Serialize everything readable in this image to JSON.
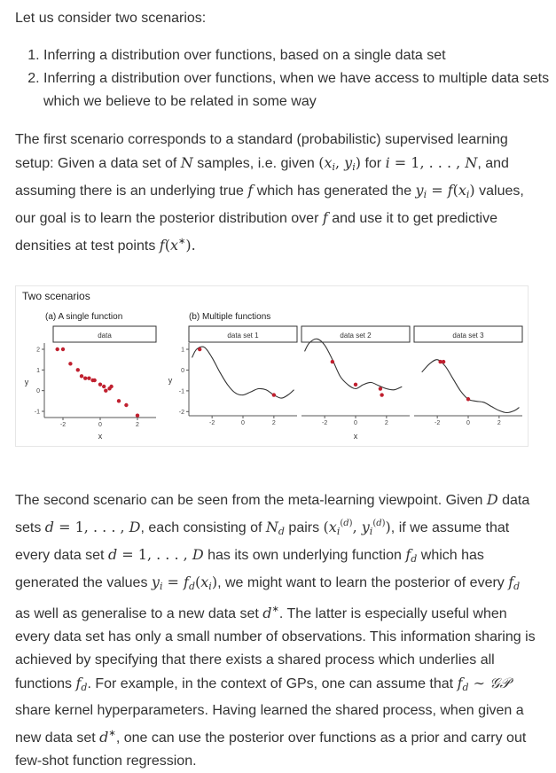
{
  "intro": "Let us consider two scenarios:",
  "scenarios": [
    "Inferring a distribution over functions, based on a single data set",
    "Inferring a distribution over functions, when we have access to multiple data sets which we believe to be related in some way"
  ],
  "para1": {
    "t1": "The first scenario corresponds to a standard (probabilistic) supervised learning setup: Given a data set of ",
    "t2": " samples, i.e. given ",
    "t3": " for ",
    "t4": ", and assuming there is an underlying true ",
    "t5": " which has generated the ",
    "t6": " values, our goal is to learn the posterior distribution over ",
    "t7": " and use it to get predictive densities at test points "
  },
  "figure": {
    "title": "Two scenarios",
    "panel_a_title": "(a) A single function",
    "panel_b_title": "(b) Multiple functions",
    "strip_labels": [
      "data",
      "data set 1",
      "data set 2",
      "data set 3"
    ],
    "y_label": "y",
    "x_label": "x",
    "colors": {
      "points": "#c0202f",
      "curve": "#333333",
      "axis": "#555555"
    }
  },
  "chart_data": [
    {
      "type": "scatter",
      "title": "(a) A single function",
      "xlabel": "x",
      "ylabel": "y",
      "xlim": [
        -3,
        3
      ],
      "ylim": [
        -1.3,
        2.3
      ],
      "x_ticks": [
        "-2",
        "0",
        "2"
      ],
      "y_ticks": [
        "-1",
        "0",
        "1",
        "2"
      ],
      "series": [
        {
          "name": "data",
          "x": [
            -2.3,
            -2.0,
            -1.6,
            -1.2,
            -1.0,
            -0.8,
            -0.6,
            -0.4,
            -0.3,
            0.0,
            0.2,
            0.3,
            0.5,
            0.6,
            1.0,
            1.4,
            2.0
          ],
          "y": [
            2.0,
            2.0,
            1.3,
            1.0,
            0.7,
            0.6,
            0.6,
            0.5,
            0.5,
            0.3,
            0.2,
            0.0,
            0.1,
            0.2,
            -0.5,
            -0.7,
            -1.2
          ]
        }
      ]
    },
    {
      "type": "line",
      "title": "(b) Multiple functions",
      "xlabel": "x",
      "ylabel": "y",
      "xlim": [
        -3.5,
        3.5
      ],
      "ylim": [
        -2.2,
        1.3
      ],
      "x_ticks": [
        "-2",
        "0",
        "2"
      ],
      "y_ticks": [
        "-2",
        "-1",
        "0",
        "1"
      ],
      "series": [
        {
          "name": "data set 1",
          "curve_x": [
            -3.3,
            -3.0,
            -2.5,
            -2.0,
            -1.5,
            -1.0,
            -0.5,
            0.0,
            0.5,
            1.0,
            1.5,
            2.0,
            2.5,
            3.0,
            3.3
          ],
          "curve_y": [
            0.6,
            1.0,
            1.1,
            0.6,
            -0.1,
            -0.7,
            -1.1,
            -1.2,
            -1.05,
            -0.9,
            -0.95,
            -1.2,
            -1.35,
            -1.15,
            -0.95
          ],
          "points_x": [
            -2.8,
            2.0
          ],
          "points_y": [
            1.0,
            -1.2
          ]
        },
        {
          "name": "data set 2",
          "curve_x": [
            -3.3,
            -3.0,
            -2.5,
            -2.0,
            -1.5,
            -1.0,
            -0.5,
            0.0,
            0.5,
            1.0,
            1.5,
            2.0,
            2.5,
            3.0
          ],
          "curve_y": [
            0.9,
            1.3,
            1.5,
            1.2,
            0.5,
            -0.3,
            -0.7,
            -0.9,
            -0.7,
            -0.6,
            -0.75,
            -0.9,
            -0.95,
            -0.8
          ],
          "points_x": [
            -1.5,
            0.0,
            1.6,
            1.7
          ],
          "points_y": [
            0.4,
            -0.7,
            -0.9,
            -1.2
          ]
        },
        {
          "name": "data set 3",
          "curve_x": [
            -3.0,
            -2.5,
            -2.0,
            -1.5,
            -1.0,
            -0.5,
            0.0,
            0.5,
            1.0,
            1.5,
            2.0,
            2.5,
            3.0,
            3.3
          ],
          "curve_y": [
            -0.1,
            0.3,
            0.5,
            0.2,
            -0.4,
            -1.0,
            -1.4,
            -1.5,
            -1.55,
            -1.75,
            -1.95,
            -2.05,
            -1.95,
            -1.8
          ],
          "points_x": [
            -1.8,
            -1.6,
            0.0
          ],
          "points_y": [
            0.4,
            0.4,
            -1.4
          ]
        }
      ]
    }
  ],
  "para2": {
    "t1": "The second scenario can be seen from the meta-learning viewpoint. Given ",
    "t2": " data sets ",
    "t3": ", each consisting of ",
    "t4": " pairs ",
    "t5": ", if we assume that every data set ",
    "t6": " has its own underlying function ",
    "t7": " which has generated the values ",
    "t8": ", we might want to learn the posterior of every ",
    "t9": " as well as generalise to a new data set ",
    "t10": ". The latter is especially useful when every data set has only a small number of observations. This information sharing is achieved by specifying that there exists a shared process which underlies all functions ",
    "t11": ". For example, in the context of GPs, one can assume that ",
    "t12": " share kernel hyperparameters. Having learned the shared process, when given a new data set ",
    "t13": ", one can use the posterior over functions as a prior and carry out few-shot function regression."
  }
}
